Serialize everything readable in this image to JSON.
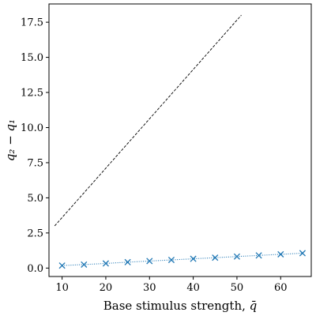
{
  "chart_data": {
    "type": "line",
    "xlabel": "Base stimulus strength, ",
    "xlabel_symbol": "q̄",
    "ylabel": "q₂ − q₁",
    "xlim": [
      7,
      67
    ],
    "ylim": [
      -0.6,
      18.8
    ],
    "xticks": [
      10,
      20,
      30,
      40,
      50,
      60
    ],
    "yticks": [
      0.0,
      2.5,
      5.0,
      7.5,
      10.0,
      12.5,
      15.0,
      17.5
    ],
    "ytick_labels": [
      "0.0",
      "2.5",
      "5.0",
      "7.5",
      "10.0",
      "12.5",
      "15.0",
      "17.5"
    ],
    "grid": false,
    "series": [
      {
        "style": "dashed-line",
        "color": "#000000",
        "x": [
          8.3,
          51
        ],
        "y": [
          3.0,
          18.0
        ]
      },
      {
        "style": "dotted-line-with-x-markers",
        "color": "#1f77b4",
        "x": [
          10,
          15,
          20,
          25,
          30,
          35,
          40,
          45,
          50,
          55,
          60,
          65
        ],
        "y": [
          0.18,
          0.25,
          0.33,
          0.42,
          0.5,
          0.58,
          0.66,
          0.74,
          0.82,
          0.9,
          0.98,
          1.06
        ]
      }
    ]
  }
}
